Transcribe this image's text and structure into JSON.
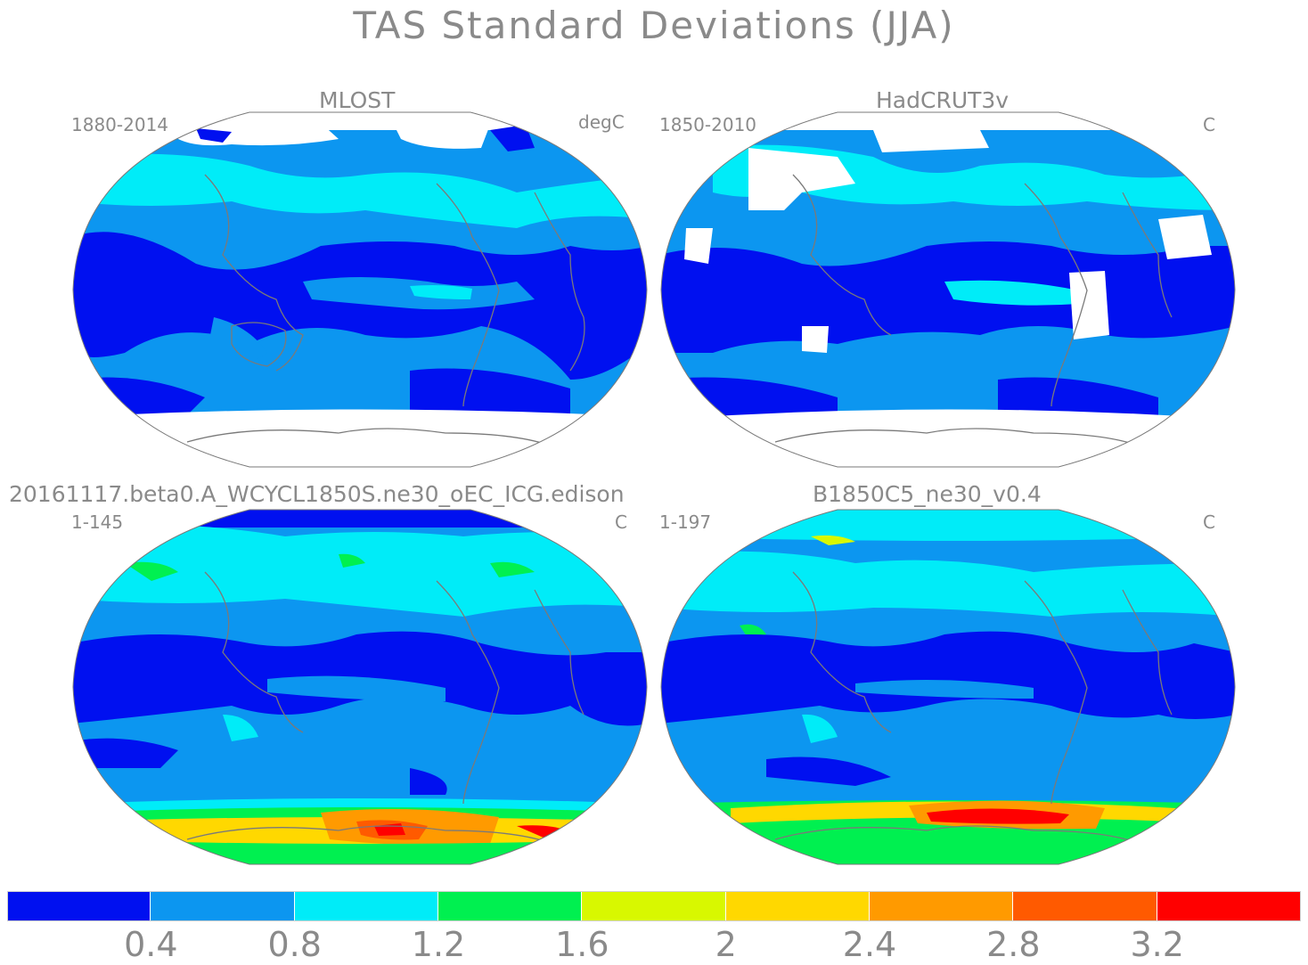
{
  "title": "TAS Standard Deviations (JJA)",
  "panels": [
    {
      "title": "MLOST",
      "left": "1880-2014",
      "right": "degC"
    },
    {
      "title": "HadCRUT3v",
      "left": "1850-2010",
      "right": "C"
    },
    {
      "title": "20161117.beta0.A_WCYCL1850S.ne30_oEC_ICG.edison",
      "left": "1-145",
      "right": "C"
    },
    {
      "title": "B1850C5_ne30_v0.4",
      "left": "1-197",
      "right": "C"
    }
  ],
  "colorbar": {
    "colors": [
      "#0010f0",
      "#0c96f0",
      "#00ecf8",
      "#00f050",
      "#d8f800",
      "#ffd800",
      "#ff9a00",
      "#ff5a00",
      "#ff0000"
    ],
    "ticks": [
      "0.4",
      "0.8",
      "1.2",
      "1.6",
      "2",
      "2.4",
      "2.8",
      "3.2"
    ]
  },
  "colors": {
    "deep": "#0010f0",
    "mid": "#0c96f0",
    "light": "#00ecf8",
    "green": "#00f050",
    "yellow": "#d8f800",
    "orange": "#ff9a00",
    "red": "#ff0000",
    "coast": "#7a7a7a"
  }
}
